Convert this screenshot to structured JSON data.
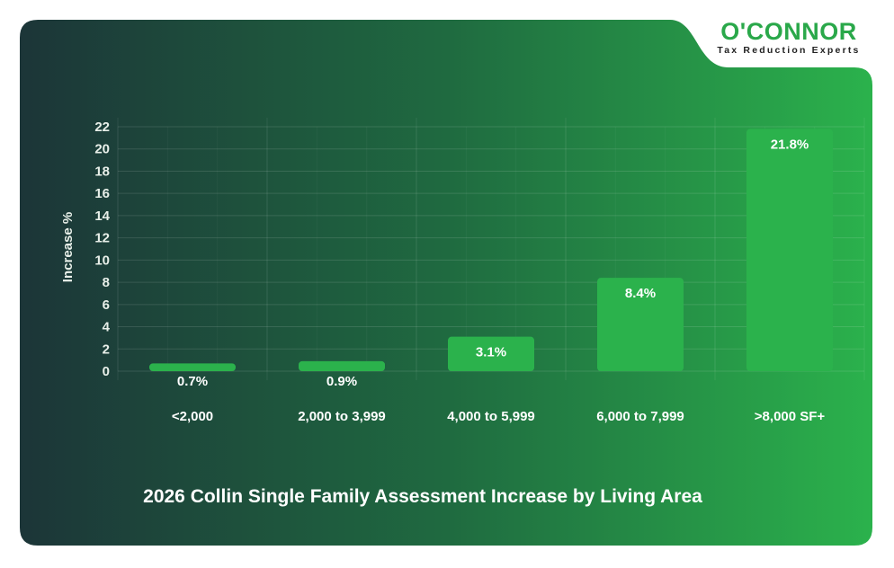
{
  "logo": {
    "name": "O'CONNOR",
    "tagline": "Tax Reduction Experts"
  },
  "colors": {
    "bar": "#2bb24c",
    "background_start": "#1c3538",
    "background_end": "#2bb24c",
    "text": "#ffffff"
  },
  "chart_data": {
    "type": "bar",
    "title": "2026 Collin Single Family Assessment Increase by Living Area",
    "xlabel": "",
    "ylabel": "Increase %",
    "categories": [
      "<2,000",
      "2,000 to 3,999",
      "4,000 to 5,999",
      "6,000 to 7,999",
      ">8,000 SF+"
    ],
    "values": [
      0.7,
      0.9,
      3.1,
      8.4,
      21.8
    ],
    "data_labels": [
      "0.7%",
      "0.9%",
      "3.1%",
      "8.4%",
      "21.8%"
    ],
    "ylim": [
      0,
      22
    ],
    "yticks": [
      0,
      2,
      4,
      6,
      8,
      10,
      12,
      14,
      16,
      18,
      20,
      22
    ],
    "grid": true,
    "legend": "none"
  }
}
